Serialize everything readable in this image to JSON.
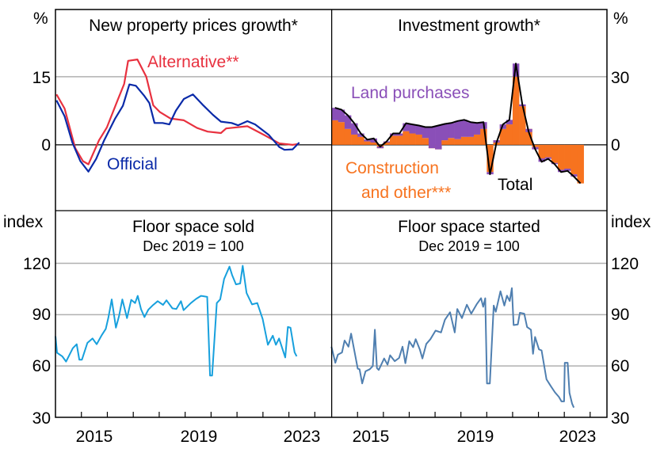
{
  "colors": {
    "alternative": "#e8313f",
    "official": "#0a2aa8",
    "land": "#8a4fb8",
    "construction": "#f7731f",
    "total": "#000000",
    "sold": "#17a0dd",
    "started": "#4f7fb0",
    "grid": "#b0b0b0"
  },
  "chart_data": [
    {
      "type": "line",
      "title": "New property prices growth*",
      "ylabel": "%",
      "ylim": [
        -14.5,
        29.8
      ],
      "xlim": [
        2014.0,
        2024.65
      ],
      "yticks": [
        0,
        15
      ],
      "grid": true,
      "series": [
        {
          "name": "Alternative**",
          "x": [
            2014.04,
            2014.35,
            2014.76,
            2015.06,
            2015.27,
            2015.68,
            2015.98,
            2016.4,
            2016.65,
            2016.8,
            2017.16,
            2017.5,
            2017.77,
            2018.03,
            2018.43,
            2018.95,
            2019.46,
            2019.87,
            2020.38,
            2020.58,
            2021.4,
            2021.7,
            2022.1,
            2022.63,
            2023.14,
            2023.4
          ],
          "y": [
            11.1,
            8.0,
            -0.7,
            -3.6,
            -4.3,
            1.0,
            3.8,
            9.9,
            13.4,
            18.5,
            18.8,
            15.0,
            8.7,
            7.2,
            5.8,
            5.4,
            3.7,
            2.9,
            2.6,
            3.6,
            4.1,
            3.2,
            2.0,
            0.3,
            0.0,
            0.2
          ]
        },
        {
          "name": "Official",
          "x": [
            2014.04,
            2014.35,
            2014.65,
            2014.96,
            2015.27,
            2015.57,
            2015.88,
            2016.29,
            2016.6,
            2016.85,
            2017.1,
            2017.41,
            2017.62,
            2017.82,
            2018.13,
            2018.39,
            2018.64,
            2018.95,
            2019.3,
            2019.66,
            2020.07,
            2020.38,
            2020.79,
            2021.04,
            2021.4,
            2021.7,
            2022.22,
            2022.63,
            2022.83,
            2023.14,
            2023.4
          ],
          "y": [
            9.8,
            6.3,
            0.5,
            -3.6,
            -5.9,
            -3.1,
            1.0,
            5.7,
            8.6,
            13.3,
            13.0,
            10.9,
            9.2,
            4.8,
            4.8,
            4.5,
            7.5,
            10.1,
            11.1,
            8.9,
            6.6,
            5.1,
            4.8,
            4.3,
            5.2,
            4.5,
            2.2,
            -0.5,
            -1.1,
            -1.0,
            0.5
          ]
        }
      ]
    },
    {
      "type": "bar",
      "stacked": true,
      "title": "Investment growth*",
      "ylabel": "%",
      "ylim": [
        -29,
        59.6
      ],
      "xlim": [
        2014.0,
        2024.65
      ],
      "yticks": [
        0,
        30
      ],
      "grid": true,
      "x": [
        2014.0,
        2014.25,
        2014.5,
        2014.75,
        2015.0,
        2015.25,
        2015.5,
        2015.75,
        2016.0,
        2016.25,
        2016.5,
        2016.75,
        2017.0,
        2017.25,
        2017.5,
        2017.75,
        2018.0,
        2018.25,
        2018.5,
        2018.75,
        2019.0,
        2019.25,
        2019.5,
        2019.75,
        2020.0,
        2020.25,
        2020.5,
        2020.75,
        2021.0,
        2021.25,
        2021.5,
        2021.75,
        2022.0,
        2022.25,
        2022.5,
        2022.75,
        2023.0,
        2023.25,
        2023.5
      ],
      "series": [
        {
          "name": "Construction and other***",
          "values": [
            10.8,
            10,
            7,
            4.5,
            3.5,
            1.5,
            1,
            -1.5,
            1,
            4,
            4,
            6,
            5,
            4.5,
            3,
            -1.5,
            -2,
            2,
            3,
            2.5,
            3.5,
            3.5,
            4.5,
            7,
            -12,
            2,
            7,
            9,
            30,
            17,
            7,
            -1,
            -6,
            -5.5,
            -8,
            -11,
            -10.5,
            -13,
            -17
          ]
        },
        {
          "name": "Land purchases",
          "values": [
            5.5,
            5.5,
            6,
            5,
            1.5,
            0.8,
            1.8,
            0.7,
            0.5,
            1,
            1,
            3.5,
            4,
            4,
            4.8,
            9.3,
            10.5,
            7.2,
            6.6,
            8,
            7.5,
            6.5,
            5.1,
            3,
            -1,
            -1,
            2,
            2,
            5.8,
            0.8,
            -1.4,
            -1,
            -1.5,
            -0.7,
            -0.5,
            -1,
            -1,
            -1,
            0
          ]
        },
        {
          "name": "Total",
          "values": [
            16.3,
            15.5,
            13,
            9.5,
            5,
            2.3,
            2.8,
            -0.8,
            1.5,
            5,
            5,
            9.5,
            9,
            8.5,
            7.8,
            7.8,
            8.5,
            9.2,
            9.6,
            10.5,
            11,
            10,
            9.6,
            10,
            -13,
            1,
            9,
            11,
            35.8,
            17.8,
            5.6,
            -2,
            -7.5,
            -6.2,
            -8.5,
            -12,
            -11.5,
            -14,
            -17
          ]
        }
      ]
    },
    {
      "type": "line",
      "title": "Floor space sold",
      "subtitle": "Dec 2019 = 100",
      "ylabel": "index",
      "ylim": [
        30,
        150.8
      ],
      "xlim": [
        2014.0,
        2024.65
      ],
      "yticks": [
        30,
        60,
        90,
        120
      ],
      "grid": true,
      "xticklabels": [
        "2015",
        "2019",
        "2023"
      ],
      "series": [
        {
          "x": [
            2014.0,
            2014.06,
            2014.26,
            2014.41,
            2014.67,
            2014.82,
            2014.92,
            2015.02,
            2015.23,
            2015.43,
            2015.59,
            2015.79,
            2015.94,
            2016.04,
            2016.17,
            2016.33,
            2016.45,
            2016.58,
            2016.76,
            2016.92,
            2017.07,
            2017.17,
            2017.3,
            2017.43,
            2017.58,
            2017.74,
            2017.94,
            2018.15,
            2018.28,
            2018.51,
            2018.66,
            2018.84,
            2018.94,
            2019.22,
            2019.42,
            2019.61,
            2019.85,
            2019.96,
            2020.04,
            2020.22,
            2020.35,
            2020.5,
            2020.71,
            2020.81,
            2020.96,
            2021.12,
            2021.22,
            2021.37,
            2021.58,
            2021.78,
            2021.99,
            2022.19,
            2022.38,
            2022.5,
            2022.62,
            2022.86,
            2022.96,
            2023.06,
            2023.22,
            2023.3
          ],
          "y": [
            77.4,
            67.7,
            65.7,
            62.6,
            70.4,
            72.7,
            63.7,
            63.7,
            73.5,
            76.1,
            72.7,
            78.2,
            81.7,
            88.3,
            98.9,
            82.4,
            89.1,
            98.9,
            88,
            98.7,
            96.8,
            101,
            93.2,
            88.6,
            92.9,
            95.3,
            97.9,
            95.7,
            98.4,
            93.7,
            93.3,
            97.9,
            92.6,
            96.8,
            99.2,
            101,
            100.4,
            54.4,
            54.4,
            96.8,
            98.9,
            110.8,
            118.1,
            113.2,
            107.7,
            108.2,
            118.6,
            102.6,
            96,
            96.8,
            87.5,
            72.4,
            77.7,
            72.4,
            76.1,
            65,
            82.8,
            82.4,
            68,
            65.7
          ]
        }
      ]
    },
    {
      "type": "line",
      "title": "Floor space started",
      "subtitle": "Dec 2019 = 100",
      "ylabel": "index",
      "ylim": [
        30,
        150.8
      ],
      "xlim": [
        2014.0,
        2024.65
      ],
      "yticks": [
        30,
        60,
        90,
        120
      ],
      "grid": true,
      "xticklabels": [
        "2015",
        "2019",
        "2023"
      ],
      "series": [
        {
          "x": [
            2013.99,
            2014.14,
            2014.24,
            2014.4,
            2014.5,
            2014.65,
            2014.75,
            2015.01,
            2015.08,
            2015.18,
            2015.31,
            2015.47,
            2015.59,
            2015.67,
            2015.75,
            2015.82,
            2016.03,
            2016.16,
            2016.26,
            2016.44,
            2016.61,
            2016.74,
            2016.85,
            2017.0,
            2017.15,
            2017.25,
            2017.41,
            2017.51,
            2017.66,
            2017.82,
            2018.02,
            2018.23,
            2018.38,
            2018.58,
            2018.76,
            2018.86,
            2019.04,
            2019.23,
            2019.4,
            2019.61,
            2019.78,
            2019.86,
            2019.94,
            2020.01,
            2020.12,
            2020.27,
            2020.35,
            2020.53,
            2020.68,
            2020.78,
            2020.89,
            2020.97,
            2021.04,
            2021.2,
            2021.28,
            2021.45,
            2021.56,
            2021.71,
            2021.79,
            2021.87,
            2022.02,
            2022.12,
            2022.31,
            2022.48,
            2022.64,
            2022.79,
            2022.89,
            2022.99,
            2023.02,
            2023.13,
            2023.2,
            2023.3,
            2023.37
          ],
          "y": [
            71.3,
            61.9,
            66.6,
            67.9,
            74.9,
            71.3,
            78.9,
            58.4,
            58.1,
            49.8,
            56.9,
            58.1,
            60,
            81.2,
            58.8,
            57.7,
            64.4,
            60.8,
            66.3,
            62.8,
            64.7,
            71.3,
            61.6,
            74.5,
            71,
            75.7,
            69.7,
            64.4,
            72.9,
            75.7,
            80.7,
            79.6,
            87,
            91.4,
            79.6,
            93.3,
            88,
            95.8,
            90.6,
            96.1,
            99.6,
            94.6,
            99.6,
            49.8,
            49.8,
            95.3,
            91.7,
            103.7,
            95.3,
            101.1,
            98,
            105.5,
            83.9,
            84.3,
            91.1,
            90.6,
            82.8,
            81.2,
            67.1,
            77,
            69.7,
            69.1,
            52.2,
            48.2,
            44.6,
            42,
            39.3,
            39.3,
            61.9,
            61.9,
            44.3,
            38,
            35.7
          ]
        }
      ]
    }
  ],
  "labels": {
    "pct_left": "%",
    "pct_right": "%",
    "index_left": "index",
    "index_right": "index",
    "top_left_ticks": [
      "15",
      "0"
    ],
    "top_right_ticks": [
      "30",
      "0"
    ],
    "bottom_ticks": [
      "120",
      "90",
      "60",
      "30"
    ],
    "alternative": "Alternative**",
    "official": "Official",
    "land": "Land purchases",
    "construction_1": "Construction",
    "construction_2": "and other***",
    "total": "Total",
    "x_years": [
      "2015",
      "2019",
      "2023"
    ]
  }
}
